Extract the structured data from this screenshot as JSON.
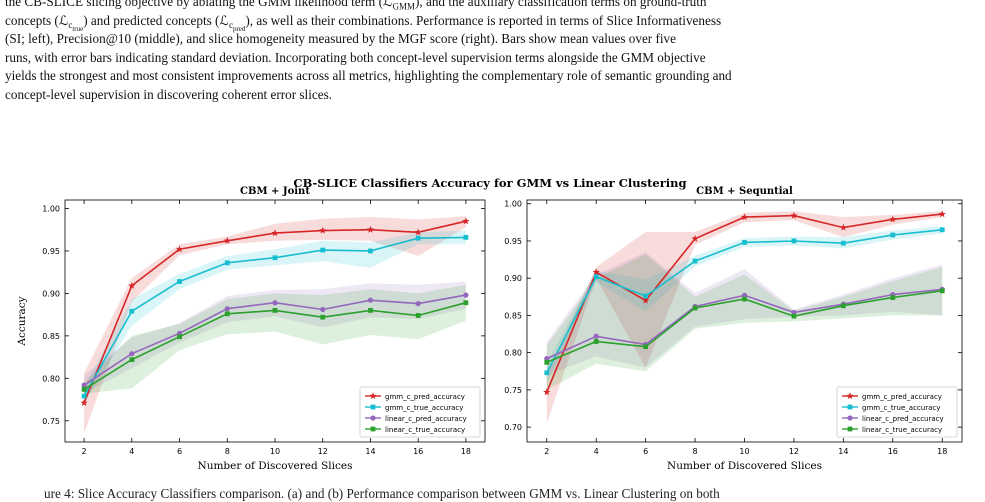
{
  "caption": {
    "lines": [
      "the CB-SLICE slicing objective by ablating the GMM likelihood term (ℒ",
      "), and the auxiliary classification terms on ground-truth",
      "concepts (ℒ",
      ") and predicted concepts (ℒ",
      "), as well as their combinations. Performance is reported in terms of Slice Informativeness",
      "(SI; left), Precision@10 (middle), and slice homogeneity measured by the MGF score (right). Bars show mean values over five",
      "runs, with error bars indicating standard deviation. Incorporating both concept-level supervision terms alongside the GMM objective",
      "yields the strongest and most consistent improvements across all metrics, highlighting the complementary role of semantic grounding and",
      "concept-level supervision in discovering coherent error slices."
    ],
    "sub_gmm": "GMM",
    "sub_ctrue": "c",
    "sub_ctrue_inner": "true",
    "sub_cpred": "c",
    "sub_cpred_inner": "pred"
  },
  "figure": {
    "suptitle": "CB-SLICE Classifiers Accuracy for GMM vs Linear Clustering",
    "xlabel": "Number of Discovered Slices",
    "ylabel": "Accuracy"
  },
  "chart_data": [
    {
      "type": "line",
      "title": "CBM + Joint",
      "xlabel": "Number of Discovered Slices",
      "ylabel": "Accuracy",
      "x": [
        2,
        4,
        6,
        8,
        10,
        12,
        14,
        16,
        18
      ],
      "ylim": [
        0.725,
        1.01
      ],
      "yticks": [
        0.75,
        0.8,
        0.85,
        0.9,
        0.95,
        1.0
      ],
      "xticks": [
        2,
        4,
        6,
        8,
        10,
        12,
        14,
        16,
        18
      ],
      "legend": "lower-right",
      "series": [
        {
          "name": "gmm_c_pred_accuracy",
          "color": "#d62728",
          "marker": "star",
          "values": [
            0.771,
            0.909,
            0.952,
            0.962,
            0.971,
            0.974,
            0.975,
            0.972,
            0.985
          ],
          "band_low": [
            0.735,
            0.89,
            0.945,
            0.958,
            0.962,
            0.963,
            0.962,
            0.944,
            0.978
          ],
          "band_high": [
            0.806,
            0.918,
            0.958,
            0.967,
            0.982,
            0.988,
            0.99,
            0.987,
            0.991
          ]
        },
        {
          "name": "gmm_c_true_accuracy",
          "color": "#17becf",
          "marker": "square",
          "values": [
            0.779,
            0.879,
            0.914,
            0.936,
            0.942,
            0.951,
            0.95,
            0.965,
            0.966
          ],
          "band_low": [
            0.77,
            0.862,
            0.905,
            0.928,
            0.933,
            0.938,
            0.93,
            0.958,
            0.958
          ],
          "band_high": [
            0.79,
            0.893,
            0.923,
            0.944,
            0.952,
            0.962,
            0.96,
            0.972,
            0.974
          ]
        },
        {
          "name": "linear_c_pred_accuracy",
          "color": "#9467bd",
          "marker": "circle",
          "values": [
            0.792,
            0.829,
            0.853,
            0.882,
            0.889,
            0.881,
            0.892,
            0.888,
            0.898
          ],
          "band_low": [
            0.782,
            0.812,
            0.842,
            0.866,
            0.873,
            0.86,
            0.872,
            0.87,
            0.882
          ],
          "band_high": [
            0.803,
            0.848,
            0.865,
            0.897,
            0.904,
            0.905,
            0.912,
            0.91,
            0.914
          ]
        },
        {
          "name": "linear_c_true_accuracy",
          "color": "#2ca02c",
          "marker": "square",
          "values": [
            0.787,
            0.822,
            0.849,
            0.876,
            0.88,
            0.872,
            0.88,
            0.874,
            0.889
          ],
          "band_low": [
            0.782,
            0.788,
            0.833,
            0.852,
            0.855,
            0.84,
            0.851,
            0.846,
            0.868
          ],
          "band_high": [
            0.795,
            0.85,
            0.864,
            0.893,
            0.9,
            0.898,
            0.905,
            0.9,
            0.91
          ]
        }
      ]
    },
    {
      "type": "line",
      "title": "CBM + Sequntial",
      "xlabel": "Number of Discovered Slices",
      "ylabel": "",
      "x": [
        2,
        4,
        6,
        8,
        10,
        12,
        14,
        16,
        18
      ],
      "ylim": [
        0.68,
        1.005
      ],
      "yticks": [
        0.7,
        0.75,
        0.8,
        0.85,
        0.9,
        0.95,
        1.0
      ],
      "xticks": [
        2,
        4,
        6,
        8,
        10,
        12,
        14,
        16,
        18
      ],
      "legend": "lower-right",
      "series": [
        {
          "name": "gmm_c_pred_accuracy",
          "color": "#d62728",
          "marker": "star",
          "values": [
            0.747,
            0.908,
            0.87,
            0.953,
            0.982,
            0.984,
            0.968,
            0.979,
            0.986
          ],
          "band_low": [
            0.705,
            0.9,
            0.78,
            0.945,
            0.975,
            0.978,
            0.955,
            0.972,
            0.982
          ],
          "band_high": [
            0.77,
            0.915,
            0.962,
            0.962,
            0.988,
            0.99,
            0.982,
            0.985,
            0.99
          ]
        },
        {
          "name": "gmm_c_true_accuracy",
          "color": "#17becf",
          "marker": "square",
          "values": [
            0.773,
            0.902,
            0.876,
            0.923,
            0.948,
            0.95,
            0.947,
            0.958,
            0.965
          ],
          "band_low": [
            0.76,
            0.895,
            0.855,
            0.916,
            0.942,
            0.944,
            0.94,
            0.952,
            0.96
          ],
          "band_high": [
            0.785,
            0.91,
            0.898,
            0.93,
            0.954,
            0.956,
            0.955,
            0.964,
            0.97
          ]
        },
        {
          "name": "linear_c_pred_accuracy",
          "color": "#9467bd",
          "marker": "circle",
          "values": [
            0.792,
            0.822,
            0.811,
            0.862,
            0.877,
            0.854,
            0.865,
            0.878,
            0.885
          ],
          "band_low": [
            0.77,
            0.795,
            0.78,
            0.835,
            0.845,
            0.848,
            0.85,
            0.855,
            0.85
          ],
          "band_high": [
            0.815,
            0.905,
            0.935,
            0.88,
            0.912,
            0.858,
            0.878,
            0.9,
            0.918
          ]
        },
        {
          "name": "linear_c_true_accuracy",
          "color": "#2ca02c",
          "marker": "square",
          "values": [
            0.787,
            0.815,
            0.808,
            0.86,
            0.872,
            0.849,
            0.863,
            0.874,
            0.883
          ],
          "band_low": [
            0.75,
            0.785,
            0.775,
            0.832,
            0.84,
            0.842,
            0.846,
            0.85,
            0.85
          ],
          "band_high": [
            0.81,
            0.9,
            0.932,
            0.875,
            0.905,
            0.856,
            0.875,
            0.896,
            0.915
          ]
        }
      ]
    }
  ],
  "next_caption": "ure 4: Slice Accuracy Classifiers comparison. (a) and (b) Performance comparison between GMM vs. Linear Clustering on both"
}
